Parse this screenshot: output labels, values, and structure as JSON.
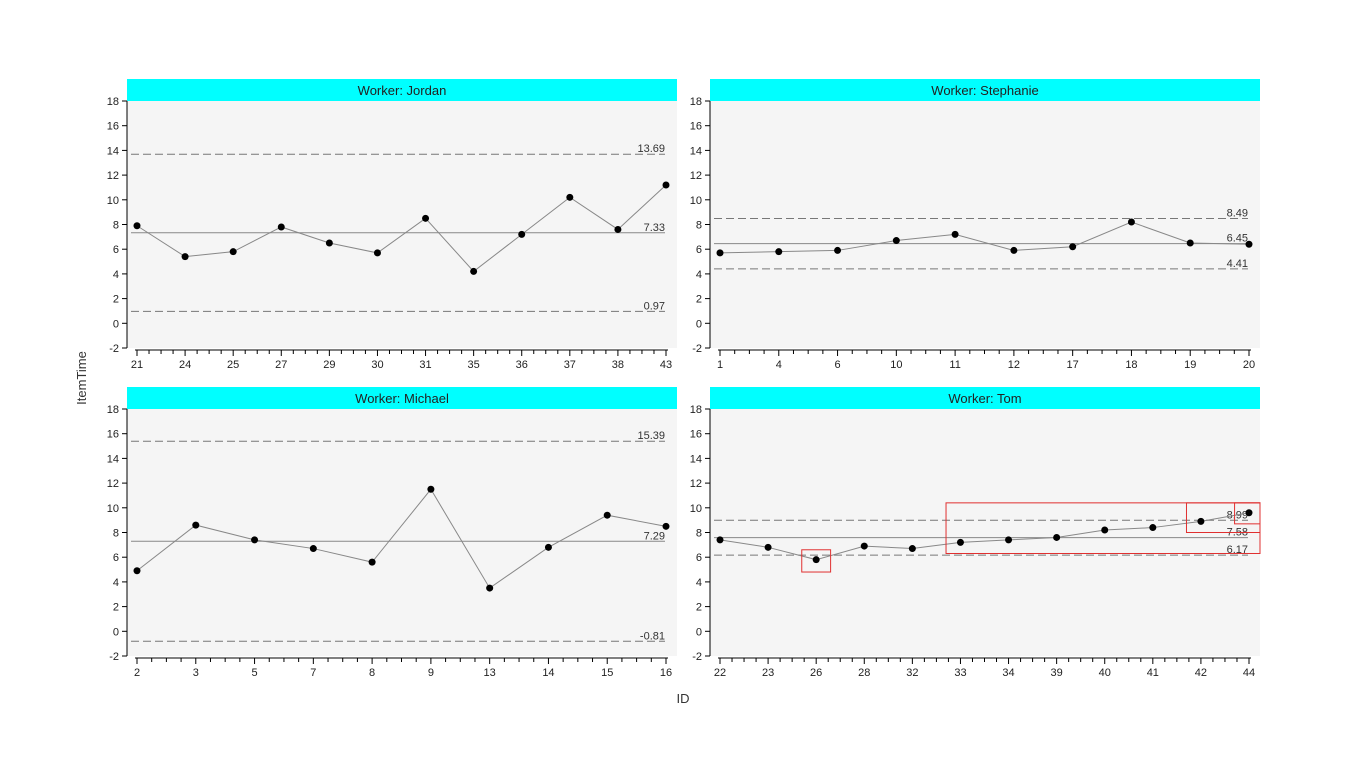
{
  "chart_data": {
    "type": "line",
    "subtype": "control-chart-facets",
    "xlabel": "ID",
    "ylabel": "ItemTime",
    "ylim": [
      -2,
      18
    ],
    "y_ticks": [
      -2,
      0,
      2,
      4,
      6,
      8,
      10,
      12,
      14,
      16,
      18
    ],
    "grid": false,
    "colors": {
      "strip": "#00ffff",
      "panel_bg": "#f5f5f5",
      "line": "#888888",
      "point": "#000000",
      "highlight": "#e03030"
    },
    "panels": [
      {
        "title": "Worker: Jordan",
        "x_labels": [
          "21",
          "24",
          "25",
          "27",
          "29",
          "30",
          "31",
          "35",
          "36",
          "37",
          "38",
          "43"
        ],
        "values": [
          7.9,
          5.4,
          5.8,
          7.8,
          6.5,
          5.7,
          8.5,
          4.2,
          7.2,
          10.2,
          7.6,
          11.2
        ],
        "center": 7.33,
        "center_label": "7.33",
        "ucl": 13.69,
        "ucl_label": "13.69",
        "lcl": 0.97,
        "lcl_label": "0.97",
        "highlights": []
      },
      {
        "title": "Worker: Stephanie",
        "x_labels": [
          "1",
          "4",
          "6",
          "10",
          "11",
          "12",
          "17",
          "18",
          "19",
          "20"
        ],
        "values": [
          5.7,
          5.8,
          5.9,
          6.7,
          7.2,
          5.9,
          6.2,
          8.2,
          6.5,
          6.4
        ],
        "center": 6.45,
        "center_label": "6.45",
        "ucl": 8.49,
        "ucl_label": "8.49",
        "lcl": 4.41,
        "lcl_label": "4.41",
        "highlights": []
      },
      {
        "title": "Worker: Michael",
        "x_labels": [
          "2",
          "3",
          "5",
          "7",
          "8",
          "9",
          "13",
          "14",
          "15",
          "16"
        ],
        "values": [
          4.9,
          8.6,
          7.4,
          6.7,
          5.6,
          11.5,
          3.5,
          6.8,
          9.4,
          8.5
        ],
        "center": 7.29,
        "center_label": "7.29",
        "ucl": 15.39,
        "ucl_label": "15.39",
        "lcl": -0.81,
        "lcl_label": "-0.81",
        "highlights": []
      },
      {
        "title": "Worker: Tom",
        "x_labels": [
          "22",
          "23",
          "26",
          "28",
          "32",
          "33",
          "34",
          "39",
          "40",
          "41",
          "42",
          "44"
        ],
        "values": [
          7.4,
          6.8,
          5.8,
          6.9,
          6.7,
          7.2,
          7.4,
          7.6,
          8.2,
          8.4,
          8.9,
          9.6
        ],
        "center": 7.58,
        "center_label": "7.58",
        "ucl": 8.99,
        "ucl_label": "8.99",
        "lcl": 6.17,
        "lcl_label": "6.17",
        "highlights": [
          {
            "from": 2,
            "to": 2,
            "ymin": 4.8,
            "ymax": 6.6
          },
          {
            "from": 5,
            "to": 11,
            "ymin": 6.3,
            "ymax": 10.4
          },
          {
            "from": 10,
            "to": 11,
            "ymin": 8.0,
            "ymax": 10.4
          },
          {
            "from": 11,
            "to": 11,
            "ymin": 8.7,
            "ymax": 10.4
          }
        ]
      }
    ]
  }
}
